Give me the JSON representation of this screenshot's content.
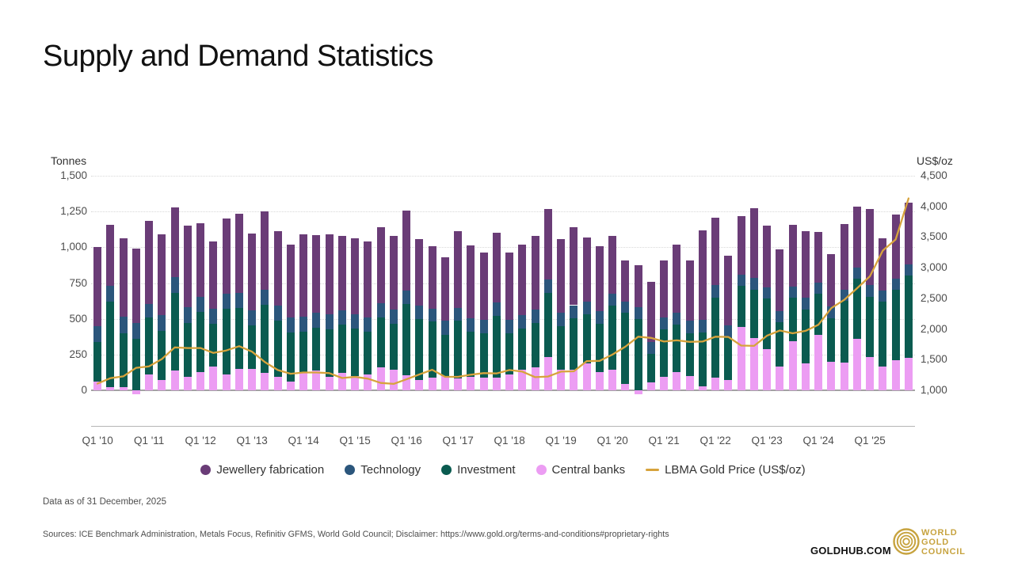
{
  "page": {
    "title": "Supply and Demand Statistics",
    "data_as_of": "Data as of 31 December, 2025",
    "sources": "Sources: ICE Benchmark Administration, Metals Focus, Refinitiv GFMS, World Gold Council; Disclaimer: https://www.gold.org/terms-and-conditions#proprietary-rights",
    "goldhub": "GOLDHUB.COM",
    "logo": {
      "line1": "WORLD",
      "line2": "GOLD",
      "line3": "COUNCIL",
      "color": "#c7a33f"
    }
  },
  "chart_data": {
    "type": "bar",
    "subtype": "stacked-bars-with-line-overlay",
    "title": "Supply and Demand Statistics",
    "grid": "dotted horizontal at left-axis ticks",
    "legend_position": "bottom-center",
    "left_axis": {
      "label": "Tonnes",
      "min": 0,
      "max": 1500,
      "ticks": [
        {
          "value": 1500,
          "label": "1,500"
        },
        {
          "value": 1250,
          "label": "1,250"
        },
        {
          "value": 1000,
          "label": "1,000"
        },
        {
          "value": 750,
          "label": "750"
        },
        {
          "value": 500,
          "label": "500"
        },
        {
          "value": 250,
          "label": "250"
        },
        {
          "value": 0,
          "label": "0"
        }
      ]
    },
    "right_axis": {
      "label": "US$/oz",
      "min": 1000,
      "max": 4500,
      "ticks": [
        {
          "value": 4500,
          "label": "4,500"
        },
        {
          "value": 4000,
          "label": "4,000"
        },
        {
          "value": 3500,
          "label": "3,500"
        },
        {
          "value": 3000,
          "label": "3,000"
        },
        {
          "value": 2500,
          "label": "2,500"
        },
        {
          "value": 2000,
          "label": "2,000"
        },
        {
          "value": 1500,
          "label": "1,500"
        },
        {
          "value": 1000,
          "label": "1,000"
        }
      ]
    },
    "categories": [
      "Q1 '10",
      "Q2 '10",
      "Q3 '10",
      "Q4 '10",
      "Q1 '11",
      "Q2 '11",
      "Q3 '11",
      "Q4 '11",
      "Q1 '12",
      "Q2 '12",
      "Q3 '12",
      "Q4 '12",
      "Q1 '13",
      "Q2 '13",
      "Q3 '13",
      "Q4 '13",
      "Q1 '14",
      "Q2 '14",
      "Q3 '14",
      "Q4 '14",
      "Q1 '15",
      "Q2 '15",
      "Q3 '15",
      "Q4 '15",
      "Q1 '16",
      "Q2 '16",
      "Q3 '16",
      "Q4 '16",
      "Q1 '17",
      "Q2 '17",
      "Q3 '17",
      "Q4 '17",
      "Q1 '18",
      "Q2 '18",
      "Q3 '18",
      "Q4 '18",
      "Q1 '19",
      "Q2 '19",
      "Q3 '19",
      "Q4 '19",
      "Q1 '20",
      "Q2 '20",
      "Q3 '20",
      "Q4 '20",
      "Q1 '21",
      "Q2 '21",
      "Q3 '21",
      "Q4 '21",
      "Q1 '22",
      "Q2 '22",
      "Q3 '22",
      "Q4 '22",
      "Q1 '23",
      "Q2 '23",
      "Q3 '23",
      "Q4 '23",
      "Q1 '24",
      "Q2 '24",
      "Q3 '24",
      "Q4 '24",
      "Q1 '25",
      "Q2 '25",
      "Q3 '25",
      "Q4 '25"
    ],
    "x_tick_labels": [
      "Q1 '10",
      "Q1 '11",
      "Q1 '12",
      "Q1 '13",
      "Q1 '14",
      "Q1 '15",
      "Q1 '16",
      "Q1 '17",
      "Q1 '18",
      "Q1 '19",
      "Q1 '20",
      "Q1 '21",
      "Q1 '22",
      "Q1 '23",
      "Q1 '24",
      "Q1 '25"
    ],
    "series": [
      {
        "name": "Jewellery fabrication",
        "color": "#6a3c77",
        "unit": "tonnes",
        "values": [
          550,
          425,
          545,
          520,
          580,
          565,
          490,
          570,
          515,
          470,
          525,
          555,
          535,
          545,
          520,
          510,
          575,
          545,
          560,
          520,
          535,
          530,
          530,
          515,
          560,
          465,
          440,
          445,
          535,
          510,
          475,
          485,
          470,
          495,
          515,
          495,
          515,
          545,
          450,
          455,
          405,
          290,
          295,
          425,
          395,
          475,
          420,
          630,
          470,
          485,
          410,
          490,
          430,
          430,
          430,
          470,
          350,
          365,
          455,
          425,
          530,
          365,
          450,
          430
        ]
      },
      {
        "name": "Technology",
        "color": "#2b567c",
        "unit": "tonnes",
        "values": [
          110,
          110,
          115,
          110,
          95,
          110,
          110,
          110,
          105,
          105,
          105,
          105,
          105,
          105,
          105,
          105,
          105,
          100,
          105,
          100,
          100,
          100,
          100,
          100,
          90,
          90,
          90,
          95,
          90,
          95,
          90,
          95,
          95,
          95,
          95,
          95,
          90,
          90,
          90,
          90,
          80,
          75,
          80,
          80,
          85,
          85,
          85,
          85,
          85,
          85,
          80,
          80,
          80,
          80,
          80,
          80,
          80,
          80,
          80,
          80,
          80,
          75,
          75,
          75
        ]
      },
      {
        "name": "Investment",
        "color": "#0a5b50",
        "unit": "tonnes",
        "values": [
          280,
          600,
          380,
          360,
          400,
          345,
          540,
          375,
          425,
          300,
          460,
          425,
          305,
          480,
          390,
          345,
          285,
          300,
          330,
          340,
          330,
          300,
          350,
          320,
          500,
          430,
          390,
          290,
          400,
          315,
          310,
          430,
          290,
          285,
          310,
          450,
          305,
          360,
          340,
          340,
          450,
          500,
          500,
          200,
          330,
          330,
          300,
          380,
          560,
          300,
          285,
          340,
          350,
          310,
          300,
          375,
          290,
          305,
          430,
          420,
          420,
          455,
          495,
          580
        ]
      },
      {
        "name": "Central banks",
        "color": "#ec9df3",
        "unit": "tonnes",
        "values": [
          60,
          20,
          20,
          -30,
          110,
          70,
          140,
          95,
          125,
          165,
          110,
          150,
          150,
          120,
          95,
          60,
          125,
          140,
          95,
          120,
          100,
          110,
          160,
          145,
          105,
          70,
          90,
          100,
          85,
          95,
          90,
          90,
          110,
          145,
          160,
          230,
          145,
          145,
          190,
          125,
          145,
          45,
          -25,
          55,
          95,
          130,
          100,
          25,
          90,
          70,
          445,
          365,
          290,
          165,
          345,
          190,
          385,
          200,
          195,
          360,
          235,
          165,
          210,
          225
        ]
      }
    ],
    "line_series": {
      "name": "LBMA Gold Price (US$/oz)",
      "color": "#d7a33c",
      "axis": "right",
      "unit": "US$/oz",
      "values": [
        1110,
        1197,
        1227,
        1367,
        1390,
        1510,
        1700,
        1690,
        1690,
        1610,
        1650,
        1720,
        1630,
        1460,
        1330,
        1270,
        1290,
        1290,
        1280,
        1200,
        1220,
        1190,
        1120,
        1105,
        1180,
        1260,
        1335,
        1220,
        1220,
        1255,
        1280,
        1275,
        1330,
        1305,
        1215,
        1225,
        1305,
        1310,
        1475,
        1480,
        1583,
        1711,
        1874,
        1855,
        1795,
        1815,
        1790,
        1795,
        1875,
        1870,
        1730,
        1725,
        1890,
        1975,
        1930,
        1970,
        2070,
        2340,
        2475,
        2665,
        2860,
        3280,
        3460,
        4130
      ]
    }
  }
}
